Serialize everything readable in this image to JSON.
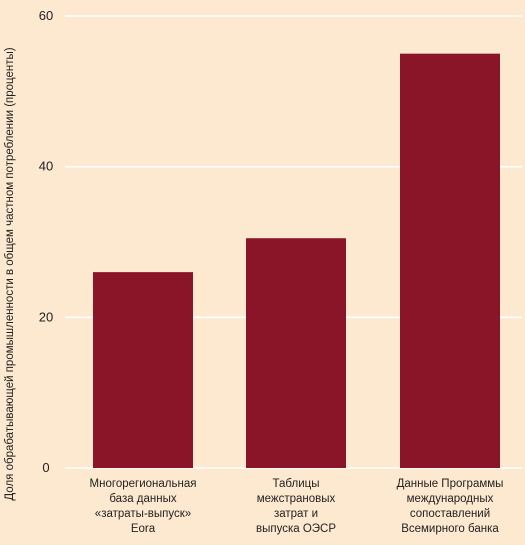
{
  "colors": {
    "background": "#fce9cf",
    "bar": "#8a1528",
    "grid": "#ffffff"
  },
  "chart_data": {
    "type": "bar",
    "ylabel": "Доля обрабатывающей промышленности в общем частном потреблении (проценты)",
    "xlabel": "",
    "ylim": [
      0,
      60
    ],
    "yticks": [
      0,
      20,
      40,
      60
    ],
    "grid": true,
    "categories": [
      [
        "Многорегиональная",
        "база данных",
        "«затраты-выпуск»",
        "Eora"
      ],
      [
        "Таблицы",
        "межстрановых",
        "затрат и",
        "выпуска ОЭСР"
      ],
      [
        "Данные Программы",
        "международных",
        "сопоставлений",
        "Всемирного банка"
      ]
    ],
    "values": [
      26,
      30.5,
      55
    ]
  }
}
